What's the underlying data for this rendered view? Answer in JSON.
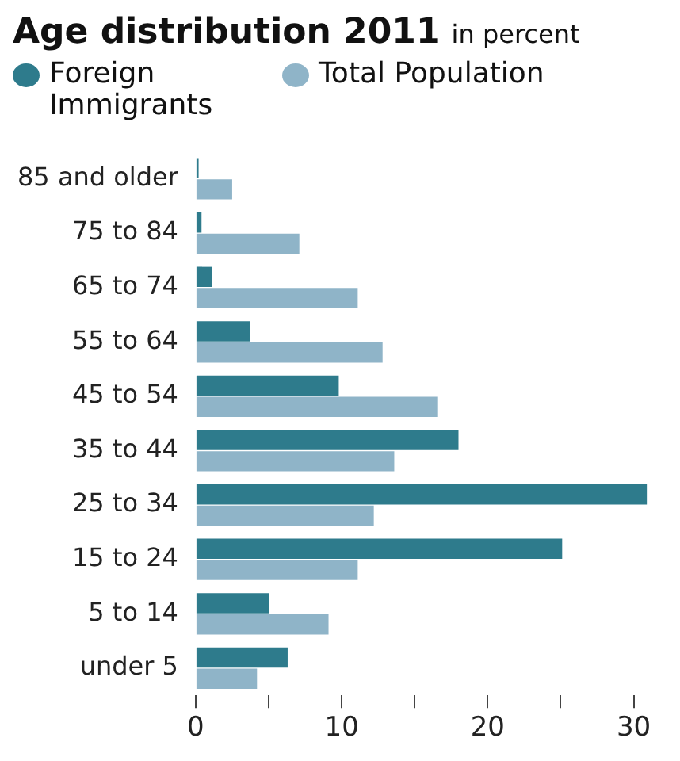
{
  "chart_data": {
    "type": "bar",
    "orientation": "horizontal",
    "title": "Age distribution 2011",
    "subtitle": "in percent",
    "categories": [
      "85 and older",
      "75 to 84",
      "65 to 74",
      "55 to 64",
      "45 to 54",
      "35 to 44",
      "25 to 34",
      "15 to 24",
      "5 to 14",
      "under 5"
    ],
    "series": [
      {
        "name": "Foreign Immigrants",
        "color": "#2e7b8c",
        "values": [
          0.2,
          0.4,
          1.1,
          3.7,
          9.8,
          18.0,
          30.9,
          25.1,
          5.0,
          6.3
        ]
      },
      {
        "name": "Total Population",
        "color": "#8fb4c8",
        "values": [
          2.5,
          7.1,
          11.1,
          12.8,
          16.6,
          13.6,
          12.2,
          11.1,
          9.1,
          4.2
        ]
      }
    ],
    "xlim": [
      0,
      31
    ],
    "xticks": [
      0,
      {
        "value": 5,
        "label": null
      },
      10,
      {
        "value": 15,
        "label": null
      },
      20,
      {
        "value": 25,
        "label": null
      },
      30
    ],
    "grid": false,
    "legend": "top left"
  }
}
